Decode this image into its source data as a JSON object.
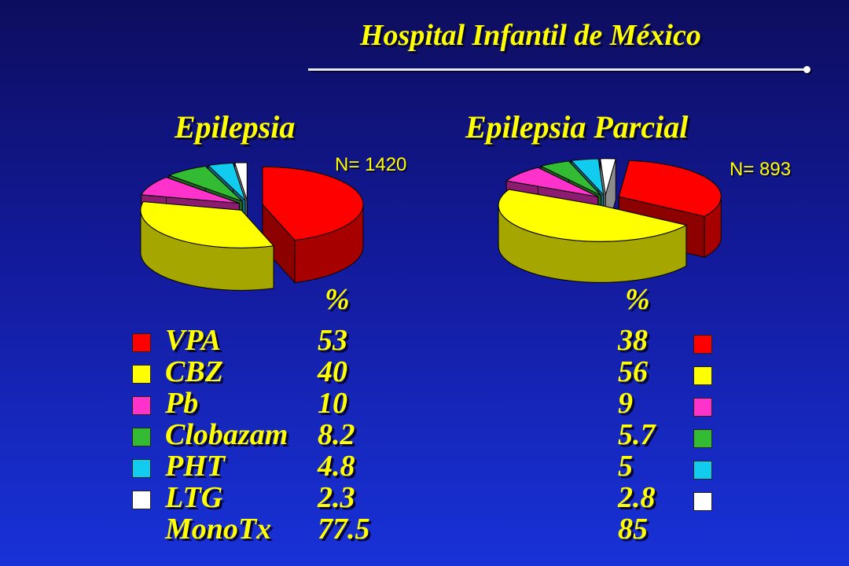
{
  "slide_title": "Hospital Infantil de México",
  "charts": [
    {
      "title": "Epilepsia",
      "n_label": "N= 1420",
      "percent_header": "%"
    },
    {
      "title": "Epilepsia Parcial",
      "n_label": "N= 893",
      "percent_header": "%"
    }
  ],
  "legend": [
    {
      "drug": "VPA",
      "color": "#ff0000",
      "epilepsia": "53",
      "parcial": "38"
    },
    {
      "drug": "CBZ",
      "color": "#ffff00",
      "epilepsia": "40",
      "parcial": "56"
    },
    {
      "drug": "Pb",
      "color": "#ff33cc",
      "epilepsia": "10",
      "parcial": "9"
    },
    {
      "drug": "Clobazam",
      "color": "#33bb33",
      "epilepsia": "8.2",
      "parcial": "5.7"
    },
    {
      "drug": "PHT",
      "color": "#11ccee",
      "epilepsia": "4.8",
      "parcial": "5"
    },
    {
      "drug": "LTG",
      "color": "#ffffff",
      "epilepsia": "2.3",
      "parcial": "2.8"
    }
  ],
  "monotx": {
    "label": "MonoTx",
    "epilepsia": "77.5",
    "parcial": "85"
  },
  "chart_data": [
    {
      "type": "pie",
      "title": "Epilepsia",
      "note": "N= 1420",
      "labels": [
        "VPA",
        "CBZ",
        "Pb",
        "Clobazam",
        "PHT",
        "LTG"
      ],
      "values": [
        53,
        40,
        10,
        8.2,
        4.8,
        2.3
      ],
      "colors": [
        "#ff0000",
        "#ffff00",
        "#ff33cc",
        "#33bb33",
        "#11ccee",
        "#ffffff"
      ],
      "three_d": true,
      "exploded": true
    },
    {
      "type": "pie",
      "title": "Epilepsia Parcial",
      "note": "N= 893",
      "labels": [
        "VPA",
        "CBZ",
        "Pb",
        "Clobazam",
        "PHT",
        "LTG"
      ],
      "values": [
        38,
        56,
        9,
        5.7,
        5,
        2.8
      ],
      "colors": [
        "#ff0000",
        "#ffff00",
        "#ff33cc",
        "#33bb33",
        "#11ccee",
        "#ffffff"
      ],
      "three_d": true,
      "exploded": true
    }
  ]
}
